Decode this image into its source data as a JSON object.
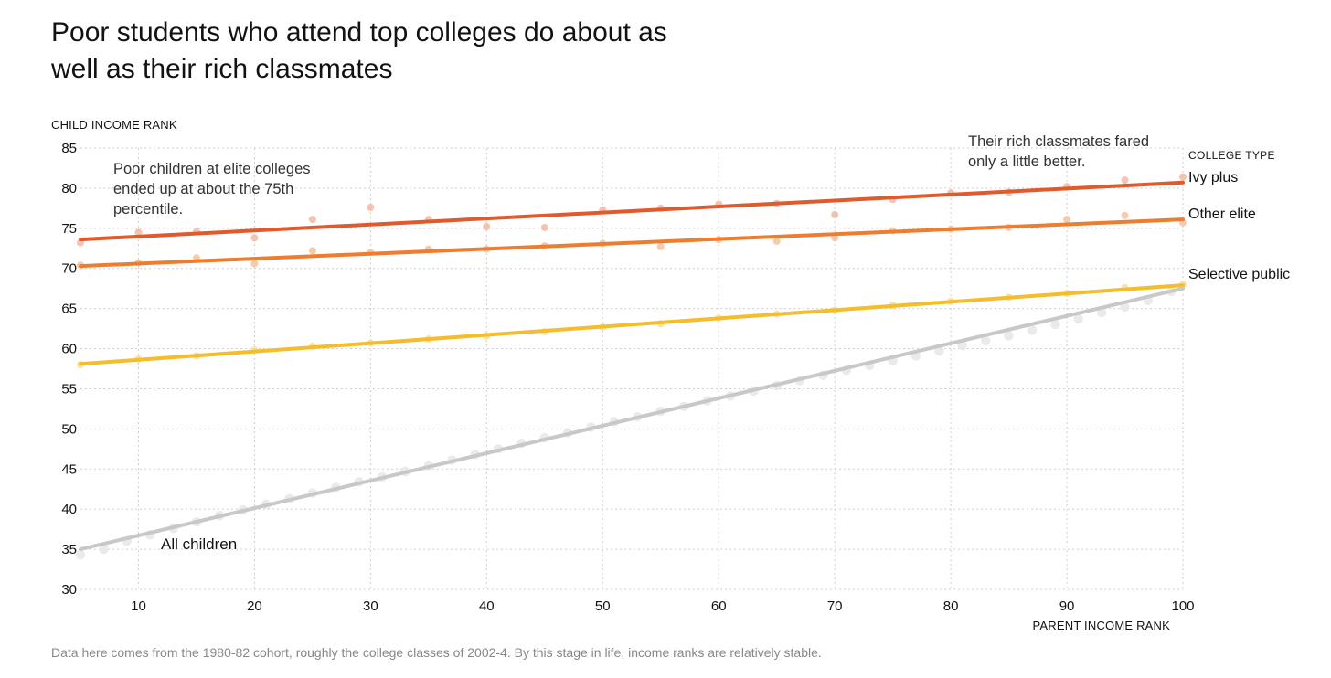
{
  "title": "Poor students who attend top colleges do about as well as their rich classmates",
  "note": "Data here comes from the 1980-82 cohort, roughly the college classes of 2002-4. By this stage in life, income ranks are relatively stable.",
  "chart_data": {
    "type": "scatter",
    "xlabel": "PARENT INCOME RANK",
    "ylabel": "CHILD INCOME RANK",
    "xlim": [
      5,
      100
    ],
    "ylim": [
      30,
      85
    ],
    "xticks": [
      10,
      20,
      30,
      40,
      50,
      60,
      70,
      80,
      90,
      100
    ],
    "yticks": [
      30,
      35,
      40,
      45,
      50,
      55,
      60,
      65,
      70,
      75,
      80,
      85
    ],
    "grid": true,
    "legend_title": "COLLEGE TYPE",
    "legend_placement": "right",
    "series": [
      {
        "name": "Ivy plus",
        "color": "#e05a2b",
        "dot_color": "#f3b9a3",
        "fit": [
          [
            5,
            73.6
          ],
          [
            100,
            80.7
          ]
        ],
        "points": [
          [
            5,
            73.2
          ],
          [
            10,
            74.5
          ],
          [
            15,
            74.6
          ],
          [
            20,
            73.8
          ],
          [
            25,
            76.1
          ],
          [
            30,
            77.6
          ],
          [
            35,
            76.1
          ],
          [
            40,
            75.2
          ],
          [
            45,
            75.1
          ],
          [
            50,
            77.3
          ],
          [
            55,
            77.5
          ],
          [
            60,
            78.0
          ],
          [
            65,
            78.1
          ],
          [
            70,
            76.7
          ],
          [
            75,
            78.6
          ],
          [
            80,
            79.4
          ],
          [
            85,
            79.5
          ],
          [
            90,
            80.2
          ],
          [
            95,
            81.0
          ],
          [
            100,
            81.4
          ]
        ]
      },
      {
        "name": "Other elite",
        "color": "#ee7d2f",
        "dot_color": "#f6c19c",
        "fit": [
          [
            5,
            70.3
          ],
          [
            100,
            76.1
          ]
        ],
        "points": [
          [
            5,
            70.4
          ],
          [
            10,
            70.7
          ],
          [
            15,
            71.3
          ],
          [
            20,
            70.6
          ],
          [
            25,
            72.2
          ],
          [
            30,
            72.0
          ],
          [
            35,
            72.4
          ],
          [
            40,
            72.4
          ],
          [
            45,
            72.8
          ],
          [
            50,
            73.1
          ],
          [
            55,
            72.7
          ],
          [
            60,
            73.6
          ],
          [
            65,
            73.4
          ],
          [
            70,
            73.8
          ],
          [
            75,
            74.7
          ],
          [
            80,
            74.9
          ],
          [
            85,
            75.1
          ],
          [
            90,
            76.1
          ],
          [
            95,
            76.6
          ],
          [
            100,
            75.7
          ]
        ]
      },
      {
        "name": "Selective public",
        "color": "#f5bd2c",
        "dot_color": "#f9dd95",
        "fit": [
          [
            5,
            58.1
          ],
          [
            100,
            67.9
          ]
        ],
        "points": [
          [
            5,
            58.0
          ],
          [
            10,
            58.7
          ],
          [
            15,
            59.1
          ],
          [
            20,
            59.8
          ],
          [
            25,
            60.3
          ],
          [
            30,
            60.7
          ],
          [
            35,
            61.2
          ],
          [
            40,
            61.6
          ],
          [
            45,
            62.1
          ],
          [
            50,
            62.7
          ],
          [
            55,
            63.1
          ],
          [
            60,
            63.8
          ],
          [
            65,
            64.3
          ],
          [
            70,
            64.8
          ],
          [
            75,
            65.4
          ],
          [
            80,
            65.9
          ],
          [
            85,
            66.4
          ],
          [
            90,
            66.9
          ],
          [
            95,
            67.6
          ],
          [
            100,
            68.0
          ]
        ]
      },
      {
        "name": "All children",
        "color": "#c8c8c8",
        "dot_color": "#e6e6e6",
        "fit": [
          [
            5,
            35.0
          ],
          [
            100,
            67.5
          ]
        ],
        "points": [
          [
            5,
            34.3
          ],
          [
            7,
            35.0
          ],
          [
            9,
            36.0
          ],
          [
            11,
            36.8
          ],
          [
            13,
            37.6
          ],
          [
            15,
            38.4
          ],
          [
            17,
            39.2
          ],
          [
            19,
            39.9
          ],
          [
            21,
            40.6
          ],
          [
            23,
            41.3
          ],
          [
            25,
            42.0
          ],
          [
            27,
            42.7
          ],
          [
            29,
            43.4
          ],
          [
            31,
            44.0
          ],
          [
            33,
            44.7
          ],
          [
            35,
            45.4
          ],
          [
            37,
            46.1
          ],
          [
            39,
            46.8
          ],
          [
            41,
            47.5
          ],
          [
            43,
            48.2
          ],
          [
            45,
            48.9
          ],
          [
            47,
            49.5
          ],
          [
            49,
            50.2
          ],
          [
            51,
            50.9
          ],
          [
            53,
            51.5
          ],
          [
            55,
            52.2
          ],
          [
            57,
            52.8
          ],
          [
            59,
            53.5
          ],
          [
            61,
            54.1
          ],
          [
            63,
            54.7
          ],
          [
            65,
            55.4
          ],
          [
            67,
            56.0
          ],
          [
            69,
            56.7
          ],
          [
            71,
            57.3
          ],
          [
            73,
            57.9
          ],
          [
            75,
            58.5
          ],
          [
            77,
            59.1
          ],
          [
            79,
            59.7
          ],
          [
            81,
            60.4
          ],
          [
            83,
            61.0
          ],
          [
            85,
            61.6
          ],
          [
            87,
            62.3
          ],
          [
            89,
            63.0
          ],
          [
            91,
            63.7
          ],
          [
            93,
            64.5
          ],
          [
            95,
            65.2
          ],
          [
            97,
            66.0
          ],
          [
            99,
            67.1
          ]
        ]
      }
    ],
    "annotations": [
      {
        "lines": [
          "Poor children at elite colleges",
          "ended up at about the 75th",
          "percentile."
        ]
      },
      {
        "lines": [
          "Their rich classmates fared",
          "only a little better."
        ]
      },
      {
        "lines": [
          "All children"
        ]
      }
    ]
  }
}
